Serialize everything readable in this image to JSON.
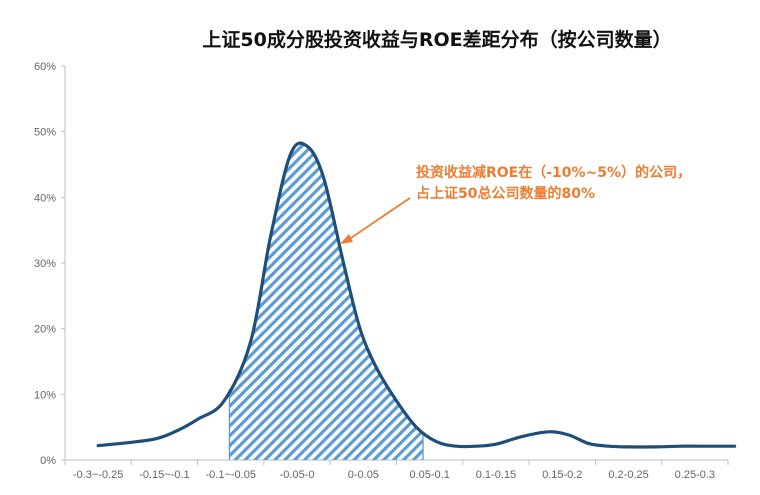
{
  "chart_data": {
    "type": "area",
    "title": "上证50成分股投资收益与ROE差距分布（按公司数量）",
    "categories": [
      "-0.3~-0.25",
      "-0.15~-0.1",
      "-0.1~-0.05",
      "-0.05-0",
      "0-0.05",
      "0.05-0.1",
      "0.1-0.15",
      "0.15-0.2",
      "0.2-0.25",
      "0.25-0.3"
    ],
    "x_ticks": [
      "-0.3~-0.25",
      "-0.15~-0.1",
      "-0.1~-0.05",
      "-0.05-0",
      "0-0.05",
      "0.05-0.1",
      "0.1-0.15",
      "0.15-0.2",
      "0.2-0.25",
      "0.25-0.3"
    ],
    "values": [
      0.02,
      0.03,
      0.07,
      0.48,
      0.16,
      0.025,
      0.02,
      0.04,
      0.02,
      0.02
    ],
    "curve": {
      "x": [
        0.0,
        0.5,
        0.9,
        1.2,
        1.5,
        1.9,
        2.3,
        2.6,
        2.9,
        3.15,
        3.4,
        3.7,
        3.95,
        4.2,
        4.5,
        4.8,
        5.1,
        5.4,
        5.7,
        6.0,
        6.4,
        6.8,
        7.1,
        7.4,
        7.7,
        8.0,
        8.4,
        8.8,
        9.2,
        9.6
      ],
      "y": [
        0.022,
        0.027,
        0.033,
        0.045,
        0.062,
        0.09,
        0.18,
        0.34,
        0.465,
        0.478,
        0.43,
        0.3,
        0.2,
        0.14,
        0.09,
        0.05,
        0.028,
        0.021,
        0.021,
        0.024,
        0.036,
        0.043,
        0.038,
        0.025,
        0.021,
        0.02,
        0.02,
        0.021,
        0.021,
        0.021
      ]
    },
    "highlight_range": {
      "from": 1.98,
      "to": 4.9
    },
    "y_axis": {
      "ylim": [
        0,
        0.6
      ],
      "ticks": [
        "0%",
        "10%",
        "20%",
        "30%",
        "40%",
        "50%",
        "60%"
      ]
    },
    "annotation": {
      "lines": [
        "投资收益减ROE在（-10%~5%）的公司，",
        "占上证50总公司数量的80%"
      ]
    },
    "colors": {
      "line": "#1F4E79",
      "hatch": "#5B9BD5",
      "annotation": "#ED7D31",
      "axis": "#BFBFBF",
      "text": "#666666"
    },
    "grid": false,
    "legend": "none"
  }
}
